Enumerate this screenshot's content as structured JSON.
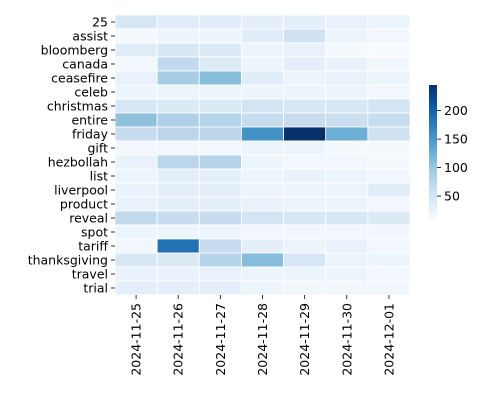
{
  "chart_data": {
    "type": "heatmap",
    "title": "",
    "xlabel": "",
    "ylabel": "",
    "x": [
      "2024-11-25",
      "2024-11-26",
      "2024-11-27",
      "2024-11-28",
      "2024-11-29",
      "2024-11-30",
      "2024-12-01"
    ],
    "y": [
      "25",
      "assist",
      "bloomberg",
      "canada",
      "ceasefire",
      "celeb",
      "christmas",
      "entire",
      "friday",
      "gift",
      "hezbollah",
      "list",
      "liverpool",
      "product",
      "reveal",
      "spot",
      "tariff",
      "thanksgiving",
      "travel",
      "trial"
    ],
    "values": [
      [
        45,
        35,
        35,
        30,
        30,
        25,
        22
      ],
      [
        12,
        20,
        20,
        35,
        55,
        20,
        15
      ],
      [
        35,
        45,
        40,
        20,
        25,
        12,
        8
      ],
      [
        15,
        70,
        40,
        20,
        30,
        25,
        15
      ],
      [
        25,
        90,
        110,
        35,
        20,
        25,
        20
      ],
      [
        20,
        20,
        20,
        20,
        20,
        20,
        15
      ],
      [
        45,
        40,
        40,
        50,
        45,
        45,
        50
      ],
      [
        105,
        85,
        80,
        65,
        65,
        60,
        65
      ],
      [
        65,
        75,
        75,
        155,
        245,
        125,
        55
      ],
      [
        15,
        15,
        15,
        20,
        20,
        12,
        12
      ],
      [
        25,
        75,
        80,
        20,
        15,
        15,
        12
      ],
      [
        20,
        30,
        30,
        20,
        25,
        20,
        15
      ],
      [
        25,
        30,
        30,
        20,
        20,
        20,
        35
      ],
      [
        25,
        30,
        30,
        25,
        20,
        20,
        15
      ],
      [
        70,
        65,
        65,
        50,
        45,
        45,
        40
      ],
      [
        20,
        20,
        20,
        15,
        15,
        15,
        15
      ],
      [
        15,
        185,
        65,
        30,
        20,
        25,
        15
      ],
      [
        45,
        40,
        80,
        110,
        45,
        20,
        20
      ],
      [
        25,
        25,
        25,
        20,
        20,
        20,
        15
      ],
      [
        30,
        30,
        30,
        20,
        15,
        15,
        15
      ]
    ],
    "colorbar": {
      "min": 8,
      "max": 245,
      "ticks": [
        50,
        100,
        150,
        200
      ]
    },
    "colormap": [
      "#f7fbff",
      "#deebf7",
      "#c6dbef",
      "#9ecae1",
      "#6baed6",
      "#4292c6",
      "#2171b5",
      "#08519c",
      "#08306b"
    ],
    "grid_line_color": "#ffffff"
  }
}
